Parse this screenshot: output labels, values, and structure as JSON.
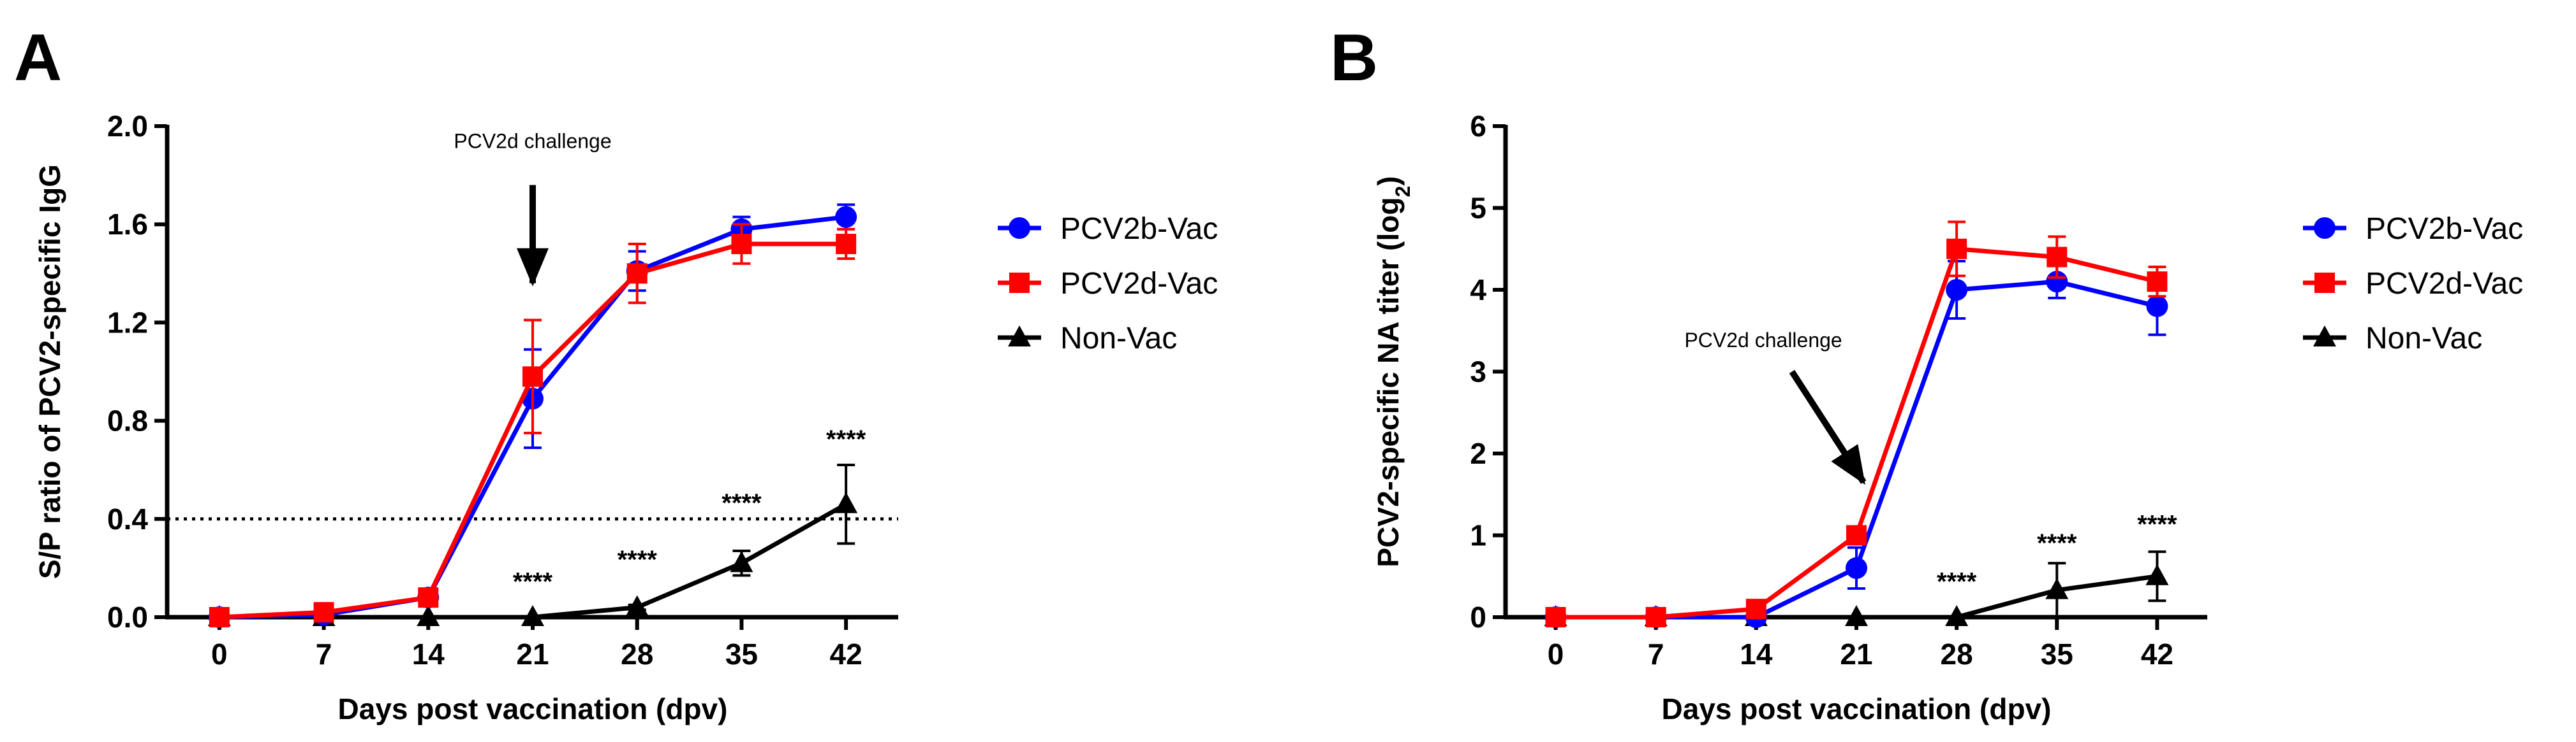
{
  "chart_data": [
    {
      "type": "line",
      "panel_label": "A",
      "title": "",
      "xlabel": "Days post vaccination (dpv)",
      "ylabel": "S/P ratio of PCV2-specific IgG",
      "ylabel_sub": "",
      "ylabel_after": "",
      "x": [
        0,
        7,
        14,
        21,
        28,
        35,
        42
      ],
      "x_tick_labels": [
        "0",
        "7",
        "14",
        "21",
        "28",
        "35",
        "42"
      ],
      "xlim": [
        -3.5,
        45.5
      ],
      "ylim": [
        0,
        2.0
      ],
      "y_ticks": [
        0,
        0.4,
        0.8,
        1.2,
        1.6,
        2.0
      ],
      "y_tick_labels": [
        "0.0",
        "0.4",
        "0.8",
        "1.2",
        "1.6",
        "2.0"
      ],
      "grid": false,
      "legend_position": "right",
      "reference_line": {
        "y": 0.4,
        "style": "dotted"
      },
      "series": [
        {
          "name": "PCV2b-Vac",
          "color": "#0000ff",
          "marker": "circle",
          "values": [
            0,
            0.01,
            0.08,
            0.89,
            1.41,
            1.58,
            1.63
          ],
          "errors": [
            0.01,
            0.02,
            0.02,
            0.2,
            0.08,
            0.05,
            0.05
          ]
        },
        {
          "name": "PCV2d-Vac",
          "color": "#ff0000",
          "marker": "square",
          "values": [
            0,
            0.02,
            0.08,
            0.98,
            1.4,
            1.52,
            1.52
          ],
          "errors": [
            0.01,
            0.02,
            0.02,
            0.23,
            0.12,
            0.08,
            0.06
          ]
        },
        {
          "name": "Non-Vac",
          "color": "#000000",
          "marker": "triangle",
          "values": [
            0,
            0,
            0,
            0,
            0.04,
            0.22,
            0.46
          ],
          "errors": [
            0,
            0,
            0,
            0,
            0.01,
            0.05,
            0.16
          ]
        }
      ],
      "significance": [
        {
          "x": 21,
          "y": 0.11,
          "text": "****"
        },
        {
          "x": 28,
          "y": 0.2,
          "text": "****"
        },
        {
          "x": 35,
          "y": 0.43,
          "text": "****"
        },
        {
          "x": 42,
          "y": 0.69,
          "text": "****"
        }
      ],
      "annotation": {
        "text": "PCV2d challenge",
        "x": 21,
        "label_y": 1.91,
        "arrow_from": [
          21,
          1.76
        ],
        "arrow_to": [
          21,
          1.36
        ]
      }
    },
    {
      "type": "line",
      "panel_label": "B",
      "title": "",
      "xlabel": "Days post vaccination (dpv)",
      "ylabel": "PCV2-specific NA titer (log",
      "ylabel_sub": "2",
      "ylabel_after": ")",
      "x": [
        0,
        7,
        14,
        21,
        28,
        35,
        42
      ],
      "x_tick_labels": [
        "0",
        "7",
        "14",
        "21",
        "28",
        "35",
        "42"
      ],
      "xlim": [
        -3.5,
        45.5
      ],
      "ylim": [
        0,
        6
      ],
      "y_ticks": [
        0,
        1,
        2,
        3,
        4,
        5,
        6
      ],
      "y_tick_labels": [
        "0",
        "1",
        "2",
        "3",
        "4",
        "5",
        "6"
      ],
      "grid": false,
      "legend_position": "right",
      "reference_line": null,
      "series": [
        {
          "name": "PCV2b-Vac",
          "color": "#0000ff",
          "marker": "circle",
          "values": [
            0,
            0,
            0,
            0.6,
            4.0,
            4.1,
            3.8
          ],
          "errors": [
            0,
            0,
            0,
            0.25,
            0.35,
            0.2,
            0.35
          ]
        },
        {
          "name": "PCV2d-Vac",
          "color": "#ff0000",
          "marker": "square",
          "values": [
            0,
            0,
            0.1,
            1.0,
            4.5,
            4.4,
            4.1
          ],
          "errors": [
            0,
            0,
            0,
            0,
            0.33,
            0.25,
            0.18
          ]
        },
        {
          "name": "Non-Vac",
          "color": "#000000",
          "marker": "triangle",
          "values": [
            0,
            0,
            0,
            0,
            0,
            0.33,
            0.5
          ],
          "errors": [
            0,
            0,
            0,
            0,
            0,
            0.33,
            0.3
          ]
        }
      ],
      "significance": [
        {
          "x": 28,
          "y": 0.33,
          "text": "****"
        },
        {
          "x": 35,
          "y": 0.8,
          "text": "****"
        },
        {
          "x": 42,
          "y": 1.03,
          "text": "****"
        }
      ],
      "annotation": {
        "text": "PCV2d challenge",
        "x": 14.5,
        "label_y": 3.3,
        "arrow_from": [
          16.5,
          3.0
        ],
        "arrow_to": [
          21.5,
          1.65
        ]
      }
    }
  ]
}
